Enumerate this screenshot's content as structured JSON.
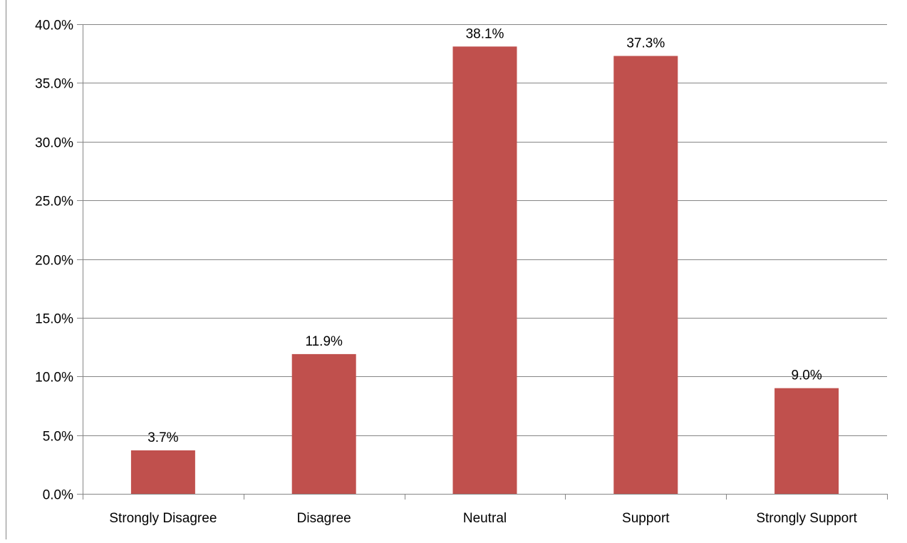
{
  "chart_data": {
    "type": "bar",
    "categories": [
      "Strongly Disagree",
      "Disagree",
      "Neutral",
      "Support",
      "Strongly Support"
    ],
    "values": [
      3.7,
      11.9,
      38.1,
      37.3,
      9.0
    ],
    "value_labels": [
      "3.7%",
      "11.9%",
      "38.1%",
      "37.3%",
      "9.0%"
    ],
    "unit": "%",
    "title": "",
    "xlabel": "",
    "ylabel": "",
    "ylim": [
      0,
      40
    ],
    "yticks": [
      0,
      5,
      10,
      15,
      20,
      25,
      30,
      35,
      40
    ],
    "ytick_labels": [
      "0.0%",
      "5.0%",
      "10.0%",
      "15.0%",
      "20.0%",
      "25.0%",
      "30.0%",
      "35.0%",
      "40.0%"
    ],
    "grid": true,
    "legend": "none",
    "colors": {
      "bar": "#c0504d",
      "grid": "#868686",
      "axis": "#868686",
      "text": "#000000"
    }
  }
}
